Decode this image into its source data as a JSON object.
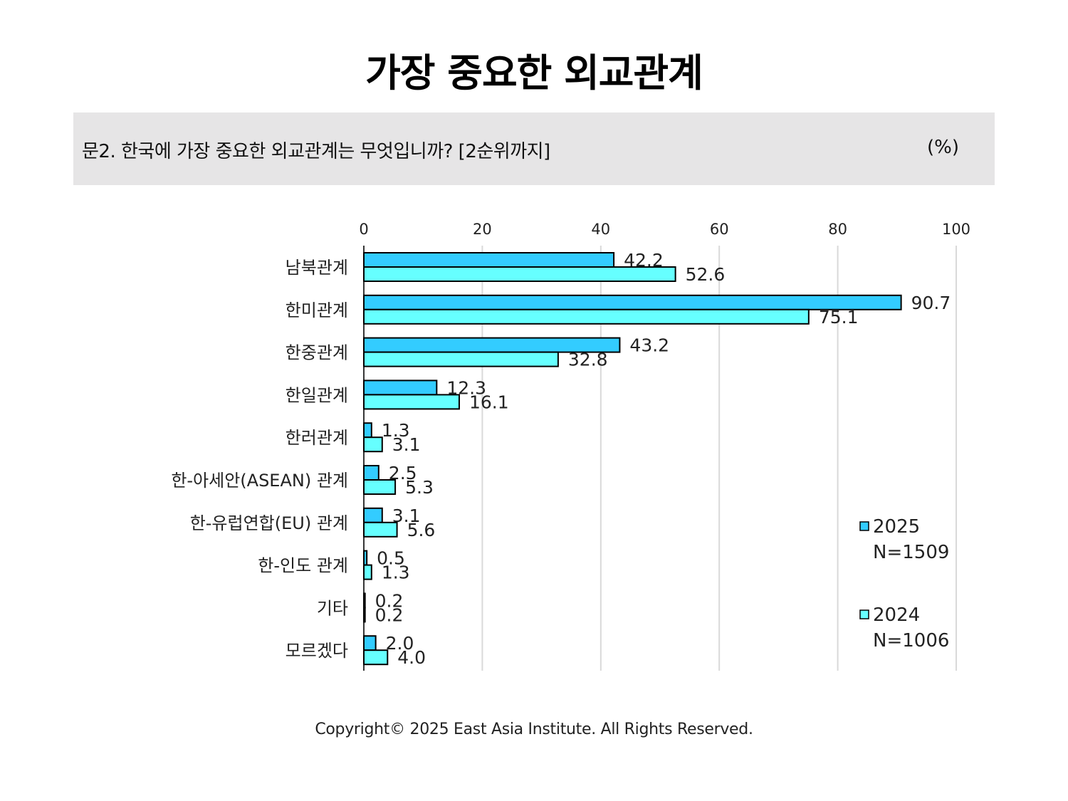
{
  "header": {
    "title": "가장 중요한 외교관계",
    "question": "문2. 한국에 가장 중요한 외교관계는 무엇입니까? [2순위까지]",
    "unit": "(%)"
  },
  "chart_data": {
    "type": "bar",
    "orientation": "horizontal",
    "categories": [
      "남북관계",
      "한미관계",
      "한중관계",
      "한일관계",
      "한러관계",
      "한-아세안(ASEAN) 관계",
      "한-유럽연합(EU) 관계",
      "한-인도 관계",
      "기타",
      "모르겠다"
    ],
    "series": [
      {
        "name": "2025",
        "sample": "N=1509",
        "color": "#33ccff",
        "values": [
          42.2,
          90.7,
          43.2,
          12.3,
          1.3,
          2.5,
          3.1,
          0.5,
          0.2,
          2.0
        ],
        "labels": [
          "42.2",
          "90.7",
          "43.2",
          "12.3",
          "1.3",
          "2.5",
          "3.1",
          "0.5",
          "0.2",
          "2.0"
        ]
      },
      {
        "name": "2024",
        "sample": "N=1006",
        "color": "#66ffff",
        "values": [
          52.6,
          75.1,
          32.8,
          16.1,
          3.1,
          5.3,
          5.6,
          1.3,
          0.2,
          4.0
        ],
        "labels": [
          "52.6",
          "75.1",
          "32.8",
          "16.1",
          "3.1",
          "5.3",
          "5.6",
          "1.3",
          "0.2",
          "4.0"
        ]
      }
    ],
    "xlim": [
      0,
      100
    ],
    "ticks": [
      "0",
      "20",
      "40",
      "60",
      "80",
      "100"
    ],
    "tick_values": [
      0,
      20,
      40,
      60,
      80,
      100
    ],
    "axis_position": "top",
    "grid": true,
    "legend_position": "right",
    "colors": {
      "grid": "#d9d9d9",
      "bar_stroke": "#000000"
    }
  },
  "footer": {
    "copyright": "Copyright© 2025 East Asia Institute. All Rights Reserved."
  }
}
